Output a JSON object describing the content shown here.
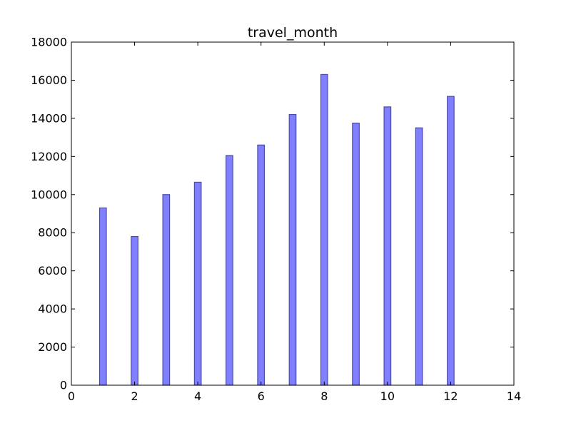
{
  "chart_data": {
    "type": "bar",
    "title": "travel_month",
    "xlabel": "",
    "ylabel": "",
    "x": [
      1,
      2,
      3,
      4,
      5,
      6,
      7,
      8,
      9,
      10,
      11,
      12
    ],
    "values": [
      9300,
      7800,
      10000,
      10650,
      12050,
      12600,
      14200,
      16300,
      13750,
      14600,
      13500,
      15150
    ],
    "xlim": [
      0,
      14
    ],
    "ylim": [
      0,
      18000
    ],
    "xticks": [
      0,
      2,
      4,
      6,
      8,
      10,
      12,
      14
    ],
    "yticks": [
      0,
      2000,
      4000,
      6000,
      8000,
      10000,
      12000,
      14000,
      16000,
      18000
    ],
    "grid": false,
    "bar_color": "#8080ff",
    "bar_edge_color": "#4a4aa8"
  }
}
